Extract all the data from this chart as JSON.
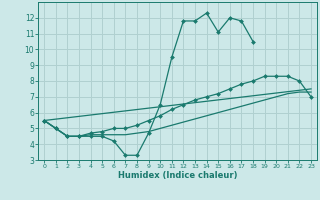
{
  "title": "",
  "xlabel": "Humidex (Indice chaleur)",
  "xlim": [
    -0.5,
    23.5
  ],
  "ylim": [
    3,
    13
  ],
  "yticks": [
    3,
    4,
    5,
    6,
    7,
    8,
    9,
    10,
    11,
    12
  ],
  "xticks": [
    0,
    1,
    2,
    3,
    4,
    5,
    6,
    7,
    8,
    9,
    10,
    11,
    12,
    13,
    14,
    15,
    16,
    17,
    18,
    19,
    20,
    21,
    22,
    23
  ],
  "bg_color": "#cce8e8",
  "grid_color": "#b0d0d0",
  "line_color": "#1a7a6e",
  "lines": [
    {
      "x": [
        0,
        1,
        2,
        3,
        4,
        5,
        6,
        7,
        8,
        9,
        10,
        11,
        12,
        13,
        14,
        15,
        16,
        17,
        18
      ],
      "y": [
        5.5,
        5.0,
        4.5,
        4.5,
        4.5,
        4.5,
        4.2,
        3.3,
        3.3,
        4.7,
        6.5,
        9.5,
        11.8,
        11.8,
        12.3,
        11.1,
        12.0,
        11.8,
        10.5
      ],
      "marker": "D",
      "markersize": 2.0
    },
    {
      "x": [
        0,
        1,
        2,
        3,
        4,
        5,
        6,
        7,
        8,
        9,
        10,
        11,
        12,
        13,
        14,
        15,
        16,
        17,
        18,
        19,
        20,
        21,
        22,
        23
      ],
      "y": [
        5.5,
        5.0,
        4.5,
        4.5,
        4.6,
        4.6,
        4.6,
        4.6,
        4.7,
        4.8,
        5.0,
        5.2,
        5.4,
        5.6,
        5.8,
        6.0,
        6.2,
        6.4,
        6.6,
        6.8,
        7.0,
        7.2,
        7.3,
        7.3
      ],
      "marker": null,
      "markersize": 0
    },
    {
      "x": [
        0,
        1,
        2,
        3,
        4,
        5,
        6,
        7,
        8,
        9,
        10,
        11,
        12,
        13,
        14,
        15,
        16,
        17,
        18,
        19,
        20,
        21,
        22,
        23
      ],
      "y": [
        5.5,
        5.0,
        4.5,
        4.5,
        4.7,
        4.8,
        5.0,
        5.0,
        5.2,
        5.5,
        5.8,
        6.2,
        6.5,
        6.8,
        7.0,
        7.2,
        7.5,
        7.8,
        8.0,
        8.3,
        8.3,
        8.3,
        8.0,
        7.0
      ],
      "marker": "D",
      "markersize": 2.0
    },
    {
      "x": [
        0,
        23
      ],
      "y": [
        5.5,
        7.5
      ],
      "marker": null,
      "markersize": 0
    }
  ]
}
